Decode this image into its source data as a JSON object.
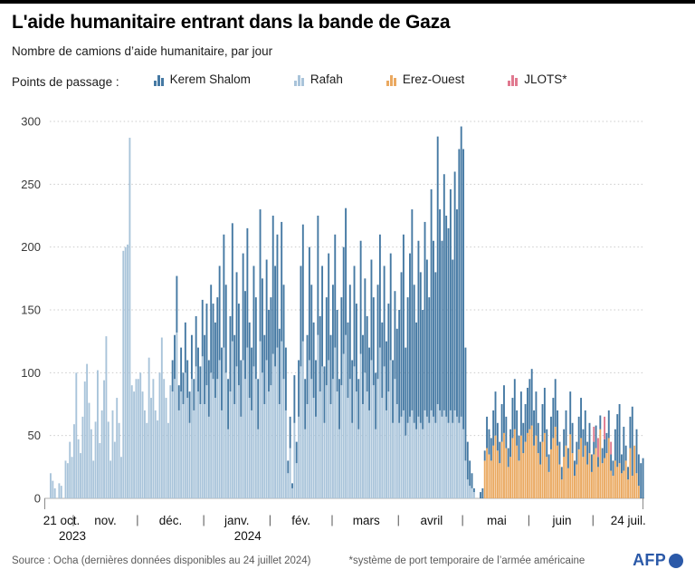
{
  "header": {
    "title": "L'aide humanitaire entrant dans la bande de Gaza",
    "subtitle": "Nombre de camions d’aide humanitaire, par jour"
  },
  "legend": {
    "label": "Points de passage :",
    "order": [
      "kerem",
      "rafah",
      "erez",
      "jlots"
    ]
  },
  "footer": {
    "source": "Source : Ocha (dernières données disponibles au 24 juillet 2024)",
    "note": "*système de port temporaire de l’armée américaine",
    "logo": "AFP"
  },
  "colors": {
    "afp_blue": "#2b59a8",
    "grid": "#cbcbcb",
    "axis": "#b0b0b0",
    "tick_text": "#3a3a3a",
    "month_text": "#111111"
  },
  "chart_data": {
    "type": "bar",
    "stacked": true,
    "title": "L'aide humanitaire entrant dans la bande de Gaza",
    "ylabel": "Nombre de camions d’aide humanitaire, par jour",
    "xlabel": "",
    "grid": "dotted-horizontal",
    "legend_position": "top",
    "ylim": [
      0,
      300
    ],
    "y_ticks": [
      0,
      50,
      100,
      150,
      200,
      250,
      300
    ],
    "start_date": "2023-10-21",
    "end_date": "2024-07-24",
    "series": [
      {
        "key": "rafah",
        "label": "Rafah",
        "color": "#a9c4da"
      },
      {
        "key": "erez",
        "label": "Erez-Ouest",
        "color": "#eaa961"
      },
      {
        "key": "kerem",
        "label": "Kerem Shalom",
        "color": "#4579a3"
      },
      {
        "key": "jlots",
        "label": "JLOTS*",
        "color": "#e0798f"
      }
    ],
    "x_ticks": [
      {
        "label": "21 oct.",
        "year": "2023",
        "day": 5
      },
      {
        "label": "nov.",
        "day": 25.5
      },
      {
        "label": "déc.",
        "day": 56
      },
      {
        "label": "janv.",
        "year": "2024",
        "day": 87
      },
      {
        "label": "fév.",
        "day": 117
      },
      {
        "label": "mars",
        "day": 147.5
      },
      {
        "label": "avril",
        "day": 178
      },
      {
        "label": "mai",
        "day": 208.5
      },
      {
        "label": "juin",
        "day": 239
      },
      {
        "label": "24 juil.",
        "day": 270
      }
    ],
    "x_separators_day": [
      11,
      41,
      72,
      103,
      132,
      163,
      193,
      224,
      254
    ],
    "values": [
      [
        20,
        0,
        0,
        0
      ],
      [
        14,
        0,
        0,
        0
      ],
      [
        8,
        0,
        0,
        0
      ],
      [
        0,
        0,
        0,
        0
      ],
      [
        12,
        0,
        0,
        0
      ],
      [
        10,
        0,
        0,
        0
      ],
      [
        0,
        0,
        0,
        0
      ],
      [
        30,
        0,
        0,
        0
      ],
      [
        28,
        0,
        0,
        0
      ],
      [
        45,
        0,
        0,
        0
      ],
      [
        33,
        0,
        0,
        0
      ],
      [
        59,
        0,
        0,
        0
      ],
      [
        100,
        0,
        0,
        0
      ],
      [
        47,
        0,
        0,
        0
      ],
      [
        36,
        0,
        0,
        0
      ],
      [
        65,
        0,
        0,
        0
      ],
      [
        93,
        0,
        0,
        0
      ],
      [
        107,
        0,
        0,
        0
      ],
      [
        76,
        0,
        0,
        0
      ],
      [
        55,
        0,
        0,
        0
      ],
      [
        30,
        0,
        0,
        0
      ],
      [
        61,
        0,
        0,
        0
      ],
      [
        102,
        0,
        0,
        0
      ],
      [
        44,
        0,
        0,
        0
      ],
      [
        70,
        0,
        0,
        0
      ],
      [
        94,
        0,
        0,
        0
      ],
      [
        129,
        0,
        0,
        0
      ],
      [
        61,
        0,
        0,
        0
      ],
      [
        30,
        0,
        0,
        0
      ],
      [
        70,
        0,
        0,
        0
      ],
      [
        45,
        0,
        0,
        0
      ],
      [
        80,
        0,
        0,
        0
      ],
      [
        60,
        0,
        0,
        0
      ],
      [
        33,
        0,
        0,
        0
      ],
      [
        197,
        0,
        0,
        0
      ],
      [
        200,
        0,
        0,
        0
      ],
      [
        202,
        0,
        0,
        0
      ],
      [
        287,
        0,
        0,
        0
      ],
      [
        90,
        0,
        0,
        0
      ],
      [
        85,
        0,
        0,
        0
      ],
      [
        95,
        0,
        0,
        0
      ],
      [
        95,
        0,
        0,
        0
      ],
      [
        100,
        0,
        0,
        0
      ],
      [
        85,
        0,
        0,
        0
      ],
      [
        70,
        0,
        0,
        0
      ],
      [
        60,
        0,
        0,
        0
      ],
      [
        112,
        0,
        0,
        0
      ],
      [
        80,
        0,
        0,
        0
      ],
      [
        95,
        0,
        0,
        0
      ],
      [
        70,
        0,
        0,
        0
      ],
      [
        62,
        0,
        0,
        0
      ],
      [
        100,
        0,
        0,
        0
      ],
      [
        128,
        0,
        0,
        0
      ],
      [
        95,
        0,
        0,
        0
      ],
      [
        80,
        0,
        0,
        0
      ],
      [
        60,
        0,
        0,
        0
      ],
      [
        90,
        0,
        0,
        0
      ],
      [
        85,
        0,
        25,
        0
      ],
      [
        95,
        0,
        35,
        0
      ],
      [
        132,
        0,
        45,
        0
      ],
      [
        70,
        0,
        20,
        0
      ],
      [
        85,
        0,
        35,
        0
      ],
      [
        75,
        0,
        25,
        0
      ],
      [
        100,
        0,
        40,
        0
      ],
      [
        80,
        0,
        30,
        0
      ],
      [
        60,
        0,
        25,
        0
      ],
      [
        95,
        0,
        35,
        0
      ],
      [
        70,
        0,
        25,
        0
      ],
      [
        105,
        0,
        40,
        0
      ],
      [
        85,
        0,
        35,
        0
      ],
      [
        75,
        0,
        30,
        0
      ],
      [
        113,
        0,
        45,
        0
      ],
      [
        75,
        0,
        55,
        0
      ],
      [
        90,
        0,
        65,
        0
      ],
      [
        65,
        0,
        45,
        0
      ],
      [
        100,
        0,
        70,
        0
      ],
      [
        95,
        0,
        60,
        0
      ],
      [
        80,
        0,
        60,
        0
      ],
      [
        95,
        0,
        65,
        0
      ],
      [
        110,
        0,
        75,
        0
      ],
      [
        70,
        0,
        50,
        0
      ],
      [
        120,
        0,
        90,
        0
      ],
      [
        100,
        0,
        70,
        0
      ],
      [
        55,
        0,
        40,
        0
      ],
      [
        85,
        0,
        60,
        0
      ],
      [
        125,
        0,
        94,
        0
      ],
      [
        75,
        0,
        55,
        0
      ],
      [
        105,
        0,
        75,
        0
      ],
      [
        90,
        0,
        65,
        0
      ],
      [
        65,
        0,
        45,
        0
      ],
      [
        110,
        0,
        85,
        0
      ],
      [
        95,
        0,
        70,
        0
      ],
      [
        120,
        0,
        95,
        0
      ],
      [
        80,
        0,
        60,
        0
      ],
      [
        70,
        0,
        50,
        0
      ],
      [
        105,
        0,
        80,
        0
      ],
      [
        95,
        0,
        65,
        0
      ],
      [
        55,
        0,
        40,
        0
      ],
      [
        125,
        0,
        105,
        0
      ],
      [
        100,
        0,
        75,
        0
      ],
      [
        75,
        0,
        55,
        0
      ],
      [
        110,
        0,
        80,
        0
      ],
      [
        85,
        0,
        65,
        0
      ],
      [
        90,
        0,
        70,
        0
      ],
      [
        115,
        0,
        110,
        0
      ],
      [
        105,
        0,
        80,
        0
      ],
      [
        120,
        0,
        90,
        0
      ],
      [
        75,
        0,
        60,
        0
      ],
      [
        125,
        0,
        95,
        0
      ],
      [
        95,
        0,
        75,
        0
      ],
      [
        70,
        0,
        50,
        0
      ],
      [
        20,
        0,
        10,
        0
      ],
      [
        40,
        0,
        25,
        0
      ],
      [
        8,
        0,
        4,
        0
      ],
      [
        60,
        0,
        38,
        0
      ],
      [
        28,
        0,
        17,
        0
      ],
      [
        65,
        0,
        45,
        0
      ],
      [
        105,
        0,
        80,
        0
      ],
      [
        125,
        0,
        93,
        0
      ],
      [
        55,
        0,
        40,
        0
      ],
      [
        75,
        0,
        55,
        0
      ],
      [
        110,
        0,
        90,
        0
      ],
      [
        95,
        0,
        75,
        0
      ],
      [
        80,
        0,
        60,
        0
      ],
      [
        65,
        0,
        45,
        0
      ],
      [
        130,
        0,
        95,
        0
      ],
      [
        85,
        0,
        60,
        0
      ],
      [
        105,
        0,
        80,
        0
      ],
      [
        60,
        0,
        45,
        0
      ],
      [
        90,
        0,
        70,
        0
      ],
      [
        110,
        0,
        85,
        0
      ],
      [
        75,
        0,
        55,
        0
      ],
      [
        95,
        0,
        75,
        0
      ],
      [
        120,
        0,
        90,
        0
      ],
      [
        85,
        0,
        65,
        0
      ],
      [
        55,
        0,
        40,
        0
      ],
      [
        90,
        0,
        70,
        0
      ],
      [
        115,
        0,
        85,
        0
      ],
      [
        130,
        0,
        101,
        0
      ],
      [
        80,
        0,
        60,
        0
      ],
      [
        95,
        0,
        75,
        0
      ],
      [
        60,
        0,
        50,
        0
      ],
      [
        105,
        0,
        80,
        0
      ],
      [
        85,
        0,
        70,
        0
      ],
      [
        55,
        0,
        40,
        0
      ],
      [
        115,
        0,
        90,
        0
      ],
      [
        75,
        0,
        55,
        0
      ],
      [
        100,
        0,
        75,
        0
      ],
      [
        85,
        0,
        60,
        0
      ],
      [
        70,
        0,
        50,
        0
      ],
      [
        110,
        0,
        80,
        0
      ],
      [
        90,
        0,
        70,
        0
      ],
      [
        55,
        0,
        45,
        0
      ],
      [
        95,
        0,
        75,
        0
      ],
      [
        120,
        0,
        90,
        0
      ],
      [
        80,
        0,
        60,
        0
      ],
      [
        105,
        0,
        80,
        0
      ],
      [
        70,
        0,
        55,
        0
      ],
      [
        85,
        0,
        70,
        0
      ],
      [
        110,
        0,
        85,
        0
      ],
      [
        60,
        0,
        50,
        0
      ],
      [
        95,
        0,
        70,
        0
      ],
      [
        75,
        0,
        60,
        0
      ],
      [
        60,
        0,
        90,
        0
      ],
      [
        65,
        0,
        115,
        0
      ],
      [
        70,
        0,
        140,
        0
      ],
      [
        50,
        0,
        70,
        0
      ],
      [
        60,
        0,
        100,
        0
      ],
      [
        65,
        0,
        130,
        0
      ],
      [
        70,
        0,
        160,
        0
      ],
      [
        60,
        0,
        110,
        0
      ],
      [
        55,
        0,
        85,
        0
      ],
      [
        65,
        0,
        140,
        0
      ],
      [
        60,
        0,
        120,
        0
      ],
      [
        55,
        0,
        95,
        0
      ],
      [
        70,
        0,
        150,
        0
      ],
      [
        65,
        0,
        125,
        0
      ],
      [
        60,
        0,
        100,
        0
      ],
      [
        70,
        0,
        176,
        0
      ],
      [
        65,
        0,
        140,
        0
      ],
      [
        60,
        0,
        120,
        0
      ],
      [
        75,
        0,
        213,
        0
      ],
      [
        70,
        0,
        160,
        0
      ],
      [
        65,
        0,
        140,
        0
      ],
      [
        70,
        0,
        188,
        0
      ],
      [
        65,
        0,
        160,
        0
      ],
      [
        60,
        0,
        155,
        0
      ],
      [
        70,
        0,
        176,
        0
      ],
      [
        60,
        0,
        130,
        0
      ],
      [
        70,
        0,
        190,
        0
      ],
      [
        65,
        0,
        165,
        0
      ],
      [
        60,
        0,
        218,
        0
      ],
      [
        65,
        0,
        231,
        0
      ],
      [
        55,
        0,
        223,
        0
      ],
      [
        30,
        0,
        90,
        0
      ],
      [
        15,
        0,
        30,
        0
      ],
      [
        10,
        0,
        20,
        0
      ],
      [
        8,
        0,
        12,
        0
      ],
      [
        5,
        0,
        3,
        0
      ],
      [
        0,
        0,
        0,
        0
      ],
      [
        0,
        0,
        0,
        0
      ],
      [
        0,
        0,
        5,
        0
      ],
      [
        0,
        0,
        8,
        0
      ],
      [
        0,
        30,
        8,
        0
      ],
      [
        0,
        40,
        25,
        0
      ],
      [
        0,
        35,
        20,
        0
      ],
      [
        0,
        30,
        18,
        0
      ],
      [
        0,
        42,
        28,
        0
      ],
      [
        0,
        50,
        35,
        0
      ],
      [
        0,
        38,
        22,
        0
      ],
      [
        0,
        28,
        17,
        0
      ],
      [
        0,
        45,
        30,
        0
      ],
      [
        0,
        52,
        38,
        0
      ],
      [
        0,
        40,
        25,
        0
      ],
      [
        0,
        25,
        15,
        0
      ],
      [
        0,
        33,
        22,
        0
      ],
      [
        0,
        48,
        32,
        0
      ],
      [
        0,
        55,
        40,
        0
      ],
      [
        0,
        42,
        28,
        0
      ],
      [
        0,
        30,
        20,
        0
      ],
      [
        0,
        50,
        35,
        0
      ],
      [
        0,
        36,
        24,
        0
      ],
      [
        0,
        45,
        30,
        0
      ],
      [
        0,
        52,
        36,
        0
      ],
      [
        0,
        55,
        40,
        0
      ],
      [
        0,
        58,
        45,
        0
      ],
      [
        0,
        42,
        28,
        0
      ],
      [
        0,
        50,
        35,
        0
      ],
      [
        0,
        36,
        24,
        0
      ],
      [
        0,
        27,
        18,
        0
      ],
      [
        0,
        45,
        30,
        0
      ],
      [
        0,
        52,
        36,
        0
      ],
      [
        0,
        33,
        22,
        0
      ],
      [
        0,
        21,
        14,
        0
      ],
      [
        0,
        39,
        26,
        0
      ],
      [
        0,
        48,
        32,
        0
      ],
      [
        0,
        57,
        38,
        0
      ],
      [
        0,
        42,
        28,
        0
      ],
      [
        0,
        27,
        18,
        0
      ],
      [
        0,
        15,
        10,
        0
      ],
      [
        0,
        33,
        22,
        0
      ],
      [
        0,
        42,
        28,
        0
      ],
      [
        0,
        24,
        16,
        0
      ],
      [
        0,
        51,
        34,
        0
      ],
      [
        0,
        36,
        24,
        0
      ],
      [
        0,
        18,
        12,
        0
      ],
      [
        0,
        27,
        18,
        0
      ],
      [
        0,
        39,
        26,
        0
      ],
      [
        0,
        48,
        32,
        0
      ],
      [
        0,
        33,
        22,
        0
      ],
      [
        0,
        42,
        28,
        0
      ],
      [
        0,
        27,
        18,
        0
      ],
      [
        0,
        36,
        24,
        0
      ],
      [
        0,
        21,
        14,
        0
      ],
      [
        0,
        35,
        10,
        12
      ],
      [
        0,
        40,
        18,
        0
      ],
      [
        0,
        25,
        8,
        15
      ],
      [
        0,
        55,
        11,
        0
      ],
      [
        0,
        28,
        12,
        0
      ],
      [
        0,
        32,
        15,
        18
      ],
      [
        0,
        36,
        16,
        0
      ],
      [
        0,
        48,
        22,
        0
      ],
      [
        0,
        22,
        13,
        10
      ],
      [
        0,
        18,
        12,
        0
      ],
      [
        0,
        30,
        25,
        0
      ],
      [
        0,
        25,
        42,
        0
      ],
      [
        0,
        28,
        47,
        0
      ],
      [
        0,
        20,
        15,
        0
      ],
      [
        0,
        22,
        35,
        0
      ],
      [
        0,
        30,
        12,
        0
      ],
      [
        0,
        15,
        10,
        0
      ],
      [
        0,
        40,
        25,
        0
      ],
      [
        0,
        18,
        55,
        0
      ],
      [
        0,
        42,
        0,
        0
      ],
      [
        0,
        20,
        35,
        0
      ],
      [
        0,
        10,
        25,
        0
      ],
      [
        0,
        0,
        28,
        0
      ],
      [
        0,
        0,
        32,
        0
      ]
    ]
  }
}
